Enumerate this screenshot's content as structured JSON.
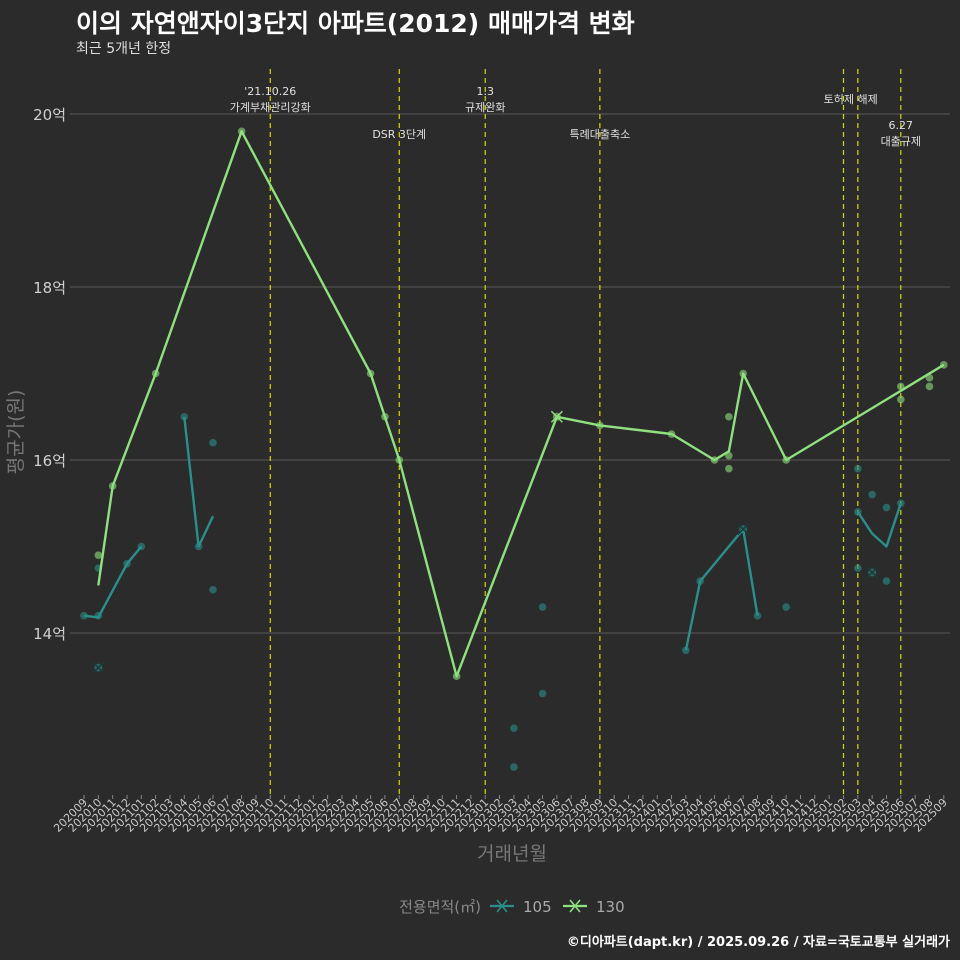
{
  "chart_data": {
    "type": "line",
    "title": "이의 자연앤자이3단지 아파트(2012) 매매가격 변화",
    "subtitle": "최근 5개년 한정",
    "xlabel": "거래년월",
    "ylabel": "평균가(원)",
    "caption": "©디아파트(dapt.kr) / 2025.09.26 / 자료=국토교통부 실거래가",
    "ylim": [
      12.0,
      20.8
    ],
    "yticks": [
      {
        "v": 14,
        "label": "14억"
      },
      {
        "v": 16,
        "label": "16억"
      },
      {
        "v": 18,
        "label": "18억"
      },
      {
        "v": 20,
        "label": "20억"
      }
    ],
    "categories": [
      "202009",
      "202010",
      "202011",
      "202012",
      "202101",
      "202102",
      "202103",
      "202104",
      "202105",
      "202106",
      "202107",
      "202108",
      "202109",
      "202110",
      "202111",
      "202112",
      "202201",
      "202202",
      "202203",
      "202204",
      "202205",
      "202206",
      "202207",
      "202208",
      "202209",
      "202210",
      "202211",
      "202212",
      "202301",
      "202302",
      "202303",
      "202304",
      "202305",
      "202306",
      "202307",
      "202308",
      "202309",
      "202310",
      "202311",
      "202312",
      "202401",
      "202402",
      "202403",
      "202404",
      "202405",
      "202406",
      "202407",
      "202408",
      "202409",
      "202410",
      "202411",
      "202412",
      "202501",
      "202502",
      "202503",
      "202504",
      "202505",
      "202506",
      "202507",
      "202508",
      "202509"
    ],
    "legend": {
      "title": "전용면적(㎡)",
      "items": [
        {
          "name": "105",
          "color": "#2a8f8b"
        },
        {
          "name": "130",
          "color": "#8fe07f"
        }
      ]
    },
    "series": [
      {
        "name": "105",
        "color": "#2a8f8b",
        "line": [
          [
            0,
            14.2
          ],
          [
            1,
            14.18
          ],
          [
            3,
            14.8
          ],
          [
            4,
            15.0
          ],
          [
            null,
            null
          ],
          [
            7,
            16.5
          ],
          [
            8,
            15.0
          ],
          [
            9,
            15.35
          ],
          [
            null,
            null
          ],
          [
            42,
            13.8
          ],
          [
            43,
            14.6
          ],
          [
            46,
            15.2
          ],
          [
            47,
            14.2
          ],
          [
            null,
            null
          ],
          [
            54,
            15.4
          ],
          [
            55,
            15.15
          ],
          [
            56,
            15.0
          ],
          [
            57,
            15.5
          ]
        ],
        "points": [
          [
            0,
            14.2
          ],
          [
            1,
            14.2
          ],
          [
            1,
            14.75
          ],
          [
            3,
            14.8
          ],
          [
            4,
            15.0
          ],
          [
            7,
            16.5
          ],
          [
            8,
            15.0
          ],
          [
            9,
            16.2
          ],
          [
            9,
            14.5
          ],
          [
            30,
            12.45
          ],
          [
            30,
            12.9
          ],
          [
            32,
            13.3
          ],
          [
            32,
            14.3
          ],
          [
            42,
            13.8
          ],
          [
            43,
            14.6
          ],
          [
            47,
            14.2
          ],
          [
            49,
            14.3
          ],
          [
            54,
            15.9
          ],
          [
            54,
            15.4
          ],
          [
            54,
            14.75
          ],
          [
            55,
            15.6
          ],
          [
            56,
            15.45
          ],
          [
            56,
            14.6
          ],
          [
            57,
            15.5
          ]
        ],
        "cross": [
          [
            1,
            13.6
          ],
          [
            46,
            15.2
          ],
          [
            55,
            14.7
          ]
        ]
      },
      {
        "name": "130",
        "color": "#8fe07f",
        "line": [
          [
            1,
            14.55
          ],
          [
            2,
            15.7
          ],
          [
            5,
            17.0
          ],
          [
            11,
            19.8
          ],
          [
            20,
            17.0
          ],
          [
            21,
            16.5
          ],
          [
            22,
            16.0
          ],
          [
            26,
            13.5
          ],
          [
            33,
            16.5
          ],
          [
            36,
            16.4
          ],
          [
            41,
            16.3
          ],
          [
            44,
            16.0
          ],
          [
            45,
            16.1
          ],
          [
            46,
            17.0
          ],
          [
            49,
            16.0
          ],
          [
            58,
            16.9
          ],
          [
            60,
            17.1
          ]
        ],
        "points": [
          [
            1,
            14.9
          ],
          [
            2,
            15.7
          ],
          [
            5,
            17.0
          ],
          [
            11,
            19.8
          ],
          [
            20,
            17.0
          ],
          [
            21,
            16.5
          ],
          [
            22,
            16.0
          ],
          [
            26,
            13.5
          ],
          [
            36,
            16.4
          ],
          [
            41,
            16.3
          ],
          [
            44,
            16.0
          ],
          [
            45,
            16.5
          ],
          [
            45,
            16.05
          ],
          [
            45,
            15.9
          ],
          [
            46,
            17.0
          ],
          [
            49,
            16.0
          ],
          [
            57,
            16.85
          ],
          [
            57,
            16.7
          ],
          [
            59,
            16.95
          ],
          [
            59,
            16.85
          ],
          [
            60,
            17.1
          ]
        ],
        "cross": [
          [
            33,
            16.5
          ]
        ]
      }
    ],
    "annotations": [
      {
        "x": 13,
        "lines": [
          "'21.10.26",
          "가계부채관리강화"
        ],
        "level": "high"
      },
      {
        "x": 22,
        "lines": [
          "DSR 3단계"
        ],
        "level": "low"
      },
      {
        "x": 28,
        "lines": [
          "1.3",
          "규제완화"
        ],
        "level": "high"
      },
      {
        "x": 36,
        "lines": [
          "특례대출축소"
        ],
        "level": "low"
      },
      {
        "x": 53.5,
        "lines": [
          "토허제 해제"
        ],
        "level": "mid"
      },
      {
        "x": 57,
        "lines": [
          "6.27",
          "대출규제"
        ],
        "level": "lowest"
      }
    ],
    "vlines": [
      13,
      22,
      28,
      36,
      53,
      54,
      57
    ]
  }
}
